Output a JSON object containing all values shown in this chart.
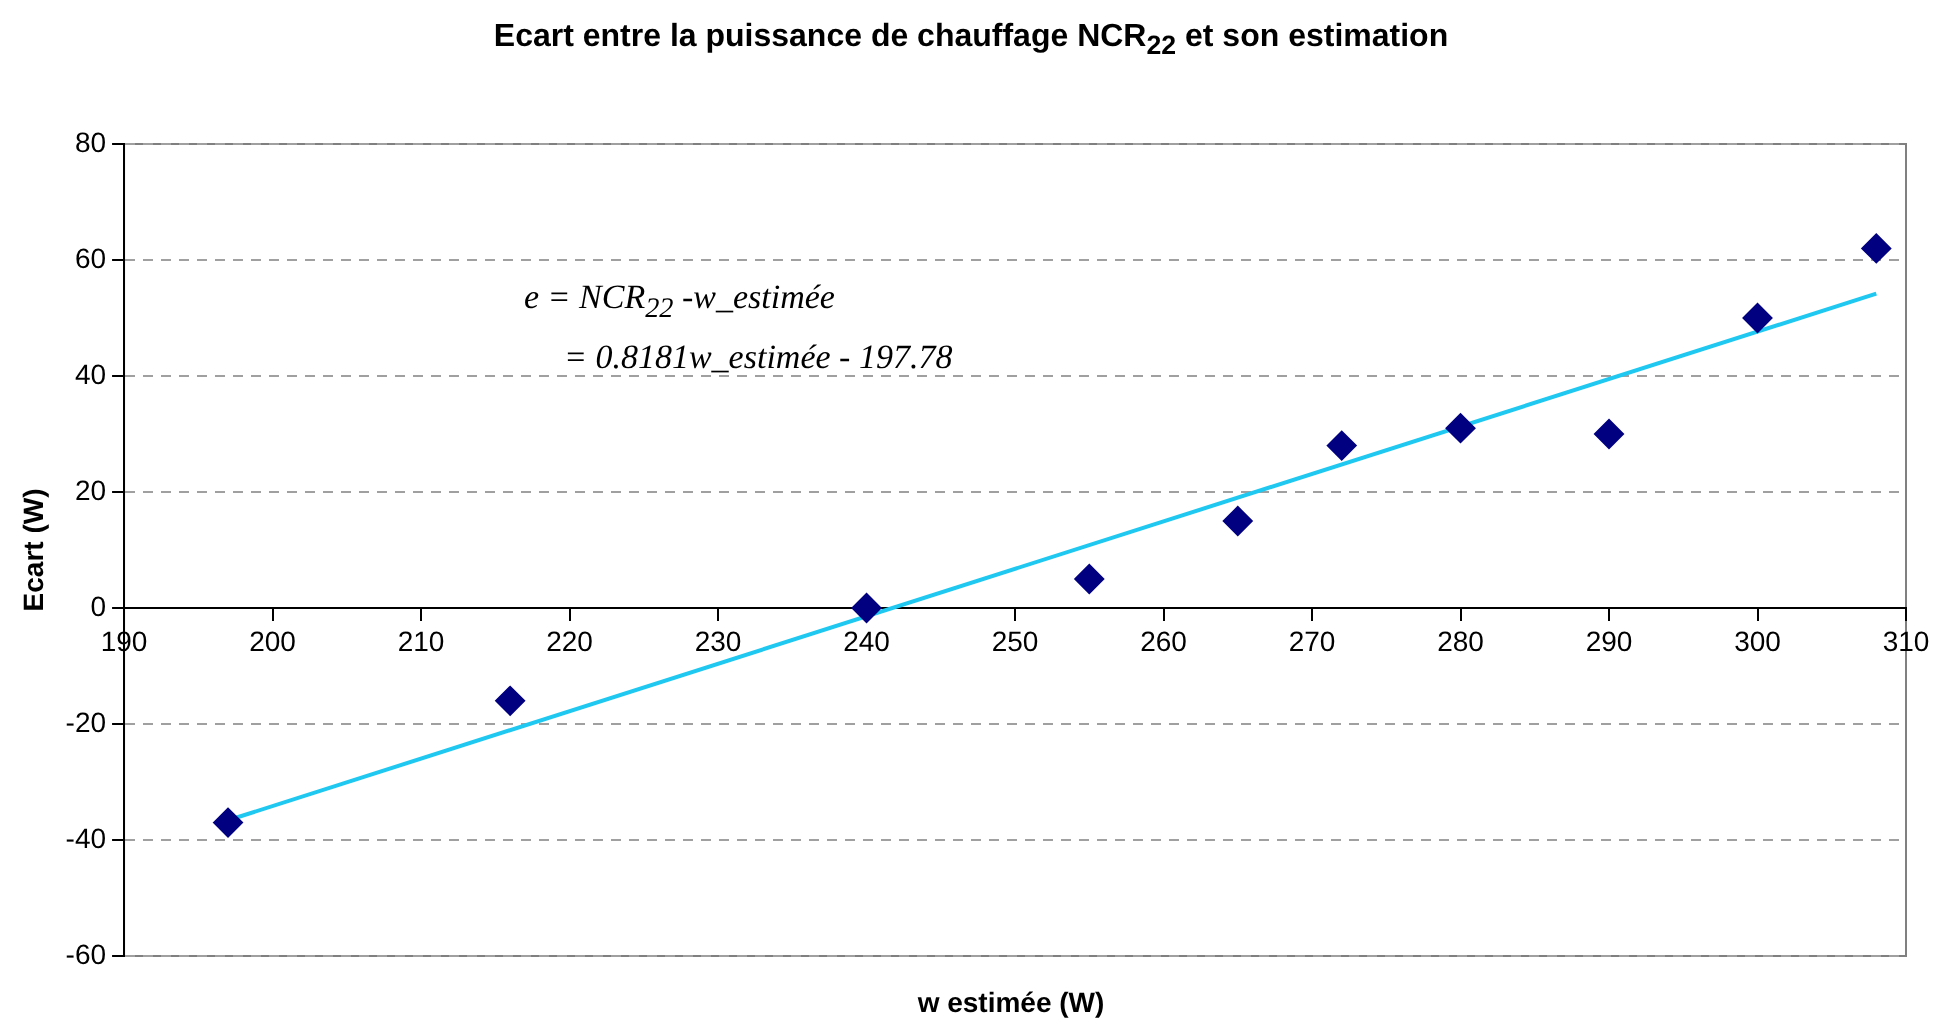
{
  "chart_data": {
    "type": "scatter",
    "title": "Ecart entre la puissance de chauffage NCR$_{22}$ et son estimation",
    "xlabel": "w estimée (W)",
    "ylabel": "Ecart (W)",
    "annotations": [
      "e = NCR$_{22}$ -w_estimée",
      "= 0.8181w_estimée - 197.78"
    ],
    "xlim": [
      190,
      310
    ],
    "xticks": [
      190,
      200,
      210,
      220,
      230,
      240,
      250,
      260,
      270,
      280,
      290,
      300,
      310
    ],
    "ylim": [
      -60,
      80
    ],
    "yticks": [
      -60,
      -40,
      -20,
      0,
      20,
      40,
      60,
      80
    ],
    "grid": "y",
    "series": [
      {
        "type": "scatter",
        "color": "#000080",
        "marker": "diamond",
        "x": [
          197,
          216,
          240,
          255,
          265,
          272,
          280,
          290,
          300,
          308
        ],
        "values": [
          -37,
          -16,
          0,
          5,
          15,
          28,
          31,
          30,
          50,
          62
        ]
      },
      {
        "type": "line",
        "color": "#1ec8f0",
        "marker": "none",
        "x": [
          197,
          308
        ],
        "values": [
          -36.6,
          54.2
        ]
      }
    ]
  }
}
